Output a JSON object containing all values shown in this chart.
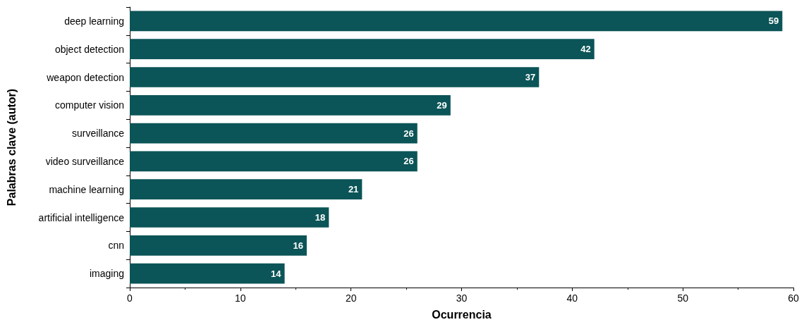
{
  "chart_data": {
    "type": "bar",
    "orientation": "horizontal",
    "xlabel": "Ocurrencia",
    "ylabel": "Palabras clave (autor)",
    "categories": [
      "deep learning",
      "object detection",
      "weapon detection",
      "computer vision",
      "surveillance",
      "video surveillance",
      "machine learning",
      "artificial intelligence",
      "cnn",
      "imaging"
    ],
    "values": [
      59,
      42,
      37,
      29,
      26,
      26,
      21,
      18,
      16,
      14
    ],
    "color": "#0b5457",
    "xlim": [
      0,
      60
    ],
    "xticks": [
      0,
      10,
      20,
      30,
      40,
      50,
      60
    ],
    "grid": false,
    "data_labels": true
  }
}
